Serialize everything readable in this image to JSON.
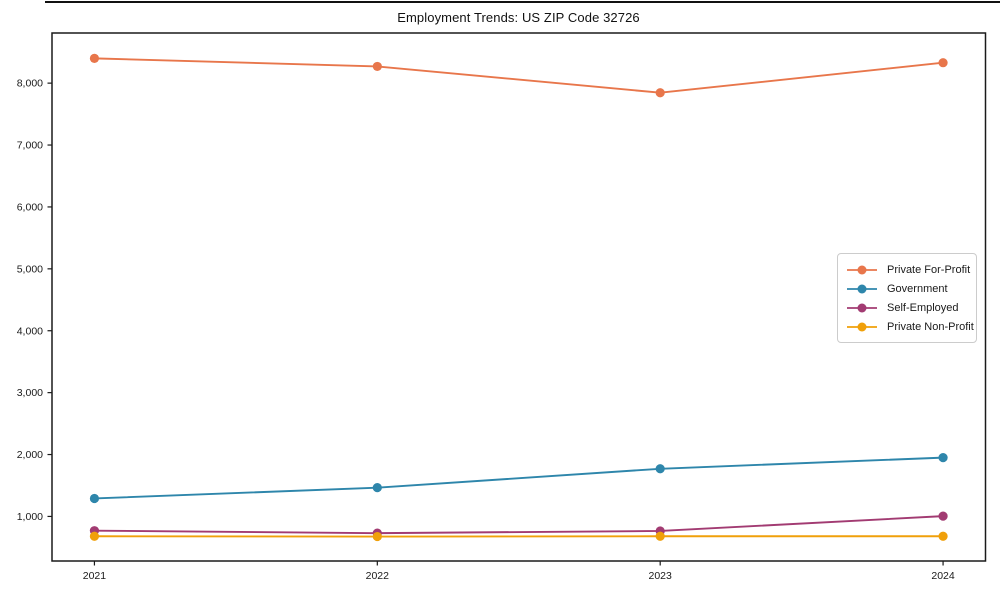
{
  "chart_data": {
    "type": "line",
    "title": "Employment Trends: US ZIP Code 32726",
    "x": [
      2021,
      2022,
      2023,
      2024
    ],
    "x_tick_labels": [
      "2021",
      "2022",
      "2023",
      "2024"
    ],
    "y_tick_values": [
      1000,
      2000,
      3000,
      4000,
      5000,
      6000,
      7000,
      8000
    ],
    "y_tick_labels": [
      "1,000",
      "2,000",
      "3,000",
      "4,000",
      "5,000",
      "6,000",
      "7,000",
      "8,000"
    ],
    "xlim": [
      2020.85,
      2024.15
    ],
    "ylim": [
      280,
      8810
    ],
    "grid": false,
    "legend_position": "center-right",
    "marker": "circle",
    "axis_color": "#1a1a1a",
    "series": [
      {
        "name": "Private For-Profit",
        "color": "#E8764B",
        "values": [
          8400,
          8270,
          7845,
          8330
        ]
      },
      {
        "name": "Government",
        "color": "#2E86AB",
        "values": [
          1290,
          1465,
          1770,
          1950
        ]
      },
      {
        "name": "Self-Employed",
        "color": "#A23B72",
        "values": [
          770,
          730,
          765,
          1005
        ]
      },
      {
        "name": "Private Non-Profit",
        "color": "#F0A00A",
        "values": [
          680,
          675,
          680,
          680
        ]
      }
    ]
  }
}
